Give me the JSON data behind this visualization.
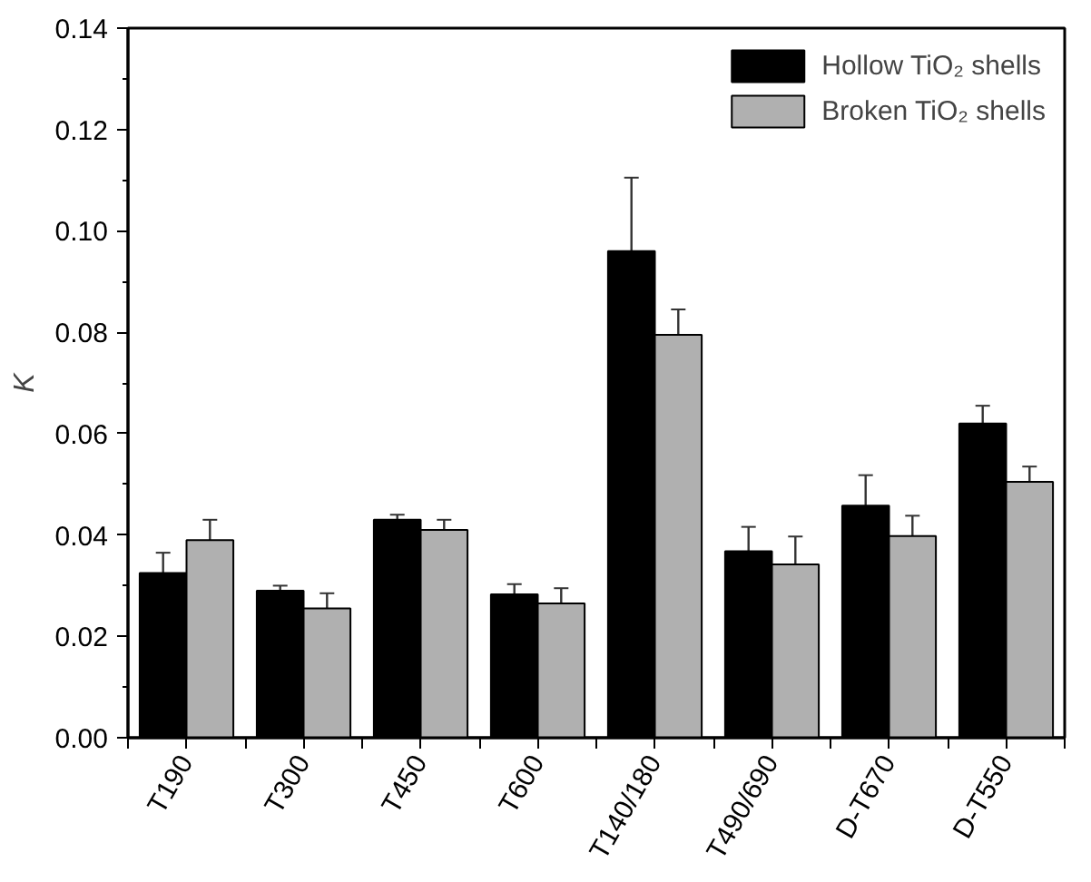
{
  "chart_data": {
    "type": "bar",
    "ylabel": "K",
    "categories": [
      "T190",
      "T300",
      "T450",
      "T600",
      "T140/180",
      "T490/690",
      "D-T670",
      "D-T550"
    ],
    "series": [
      {
        "name": "Hollow TiO₂ shells",
        "color": "#000000",
        "values": [
          0.0325,
          0.029,
          0.043,
          0.0283,
          0.096,
          0.0368,
          0.0458,
          0.062
        ],
        "errors": [
          0.004,
          0.001,
          0.001,
          0.002,
          0.0145,
          0.0048,
          0.006,
          0.0035
        ]
      },
      {
        "name": "Broken TiO₂ shells",
        "color": "#b0b0b0",
        "values": [
          0.039,
          0.0255,
          0.041,
          0.0265,
          0.0795,
          0.0342,
          0.0398,
          0.0505
        ],
        "errors": [
          0.004,
          0.003,
          0.002,
          0.003,
          0.005,
          0.0055,
          0.004,
          0.003
        ]
      }
    ],
    "ylim": [
      0,
      0.14
    ],
    "yticks": [
      {
        "value": 0,
        "label": "0.00"
      },
      {
        "value": 0.02,
        "label": "0.02"
      },
      {
        "value": 0.04,
        "label": "0.04"
      },
      {
        "value": 0.06,
        "label": "0.06"
      },
      {
        "value": 0.08,
        "label": "0.08"
      },
      {
        "value": 0.1,
        "label": "0.10"
      },
      {
        "value": 0.12,
        "label": "0.12"
      },
      {
        "value": 0.14,
        "label": "0.14"
      }
    ],
    "legend": "top right",
    "grid": false
  }
}
